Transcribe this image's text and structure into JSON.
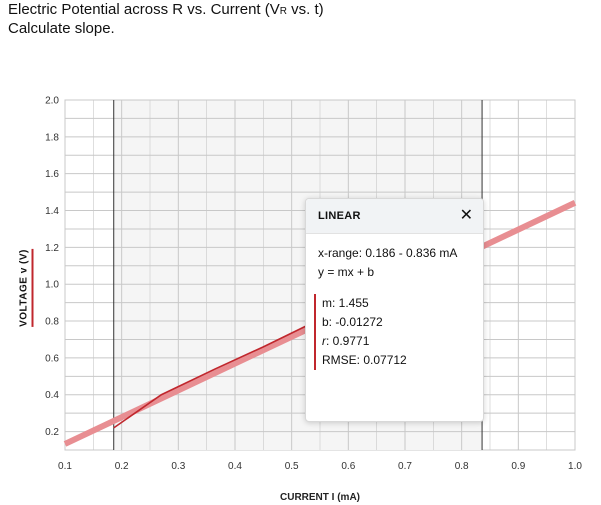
{
  "prompt": {
    "title_main": "Electric Potential across R vs. Current (V",
    "title_sub": "R",
    "title_end": " vs. t)",
    "instruction": "Calculate slope."
  },
  "axes": {
    "ylabel": "VOLTAGE v (V)",
    "xlabel": "CURRENT I (mA)"
  },
  "fit_box": {
    "title": "LINEAR",
    "close_glyph": "✕",
    "range": "x-range: 0.186 - 0.836 mA",
    "equation": "y = mx + b",
    "m": "m: 1.455",
    "b": "b: -0.01272",
    "r_symbol": "r",
    "r_value": ": 0.9771",
    "rmse": "RMSE: 0.07712"
  },
  "colors": {
    "data_line": "#c0272d",
    "fit_line": "#e88e92",
    "grid": "#c8c8c8",
    "selection_fill": "#f5f5f5",
    "selection_border": "#333333"
  },
  "chart_data": {
    "type": "line",
    "xlim": [
      0.1,
      1.0
    ],
    "ylim": [
      0.1,
      2.0
    ],
    "x_ticks": [
      "0.1",
      "0.2",
      "0.3",
      "0.4",
      "0.5",
      "0.6",
      "0.7",
      "0.8",
      "0.9",
      "1.0"
    ],
    "y_ticks": [
      "0.2",
      "0.4",
      "0.6",
      "0.8",
      "1.0",
      "1.2",
      "1.4",
      "1.6",
      "1.8",
      "2.0"
    ],
    "grid": true,
    "selection_range": [
      0.186,
      0.836
    ],
    "series": [
      {
        "x": [
          0.186,
          0.27,
          0.365,
          0.45,
          0.53
        ],
        "y": [
          0.22,
          0.4,
          0.54,
          0.66,
          0.78
        ]
      }
    ],
    "fit": {
      "m": 1.455,
      "b": -0.01272,
      "x_range": [
        0.1,
        1.0
      ]
    }
  }
}
